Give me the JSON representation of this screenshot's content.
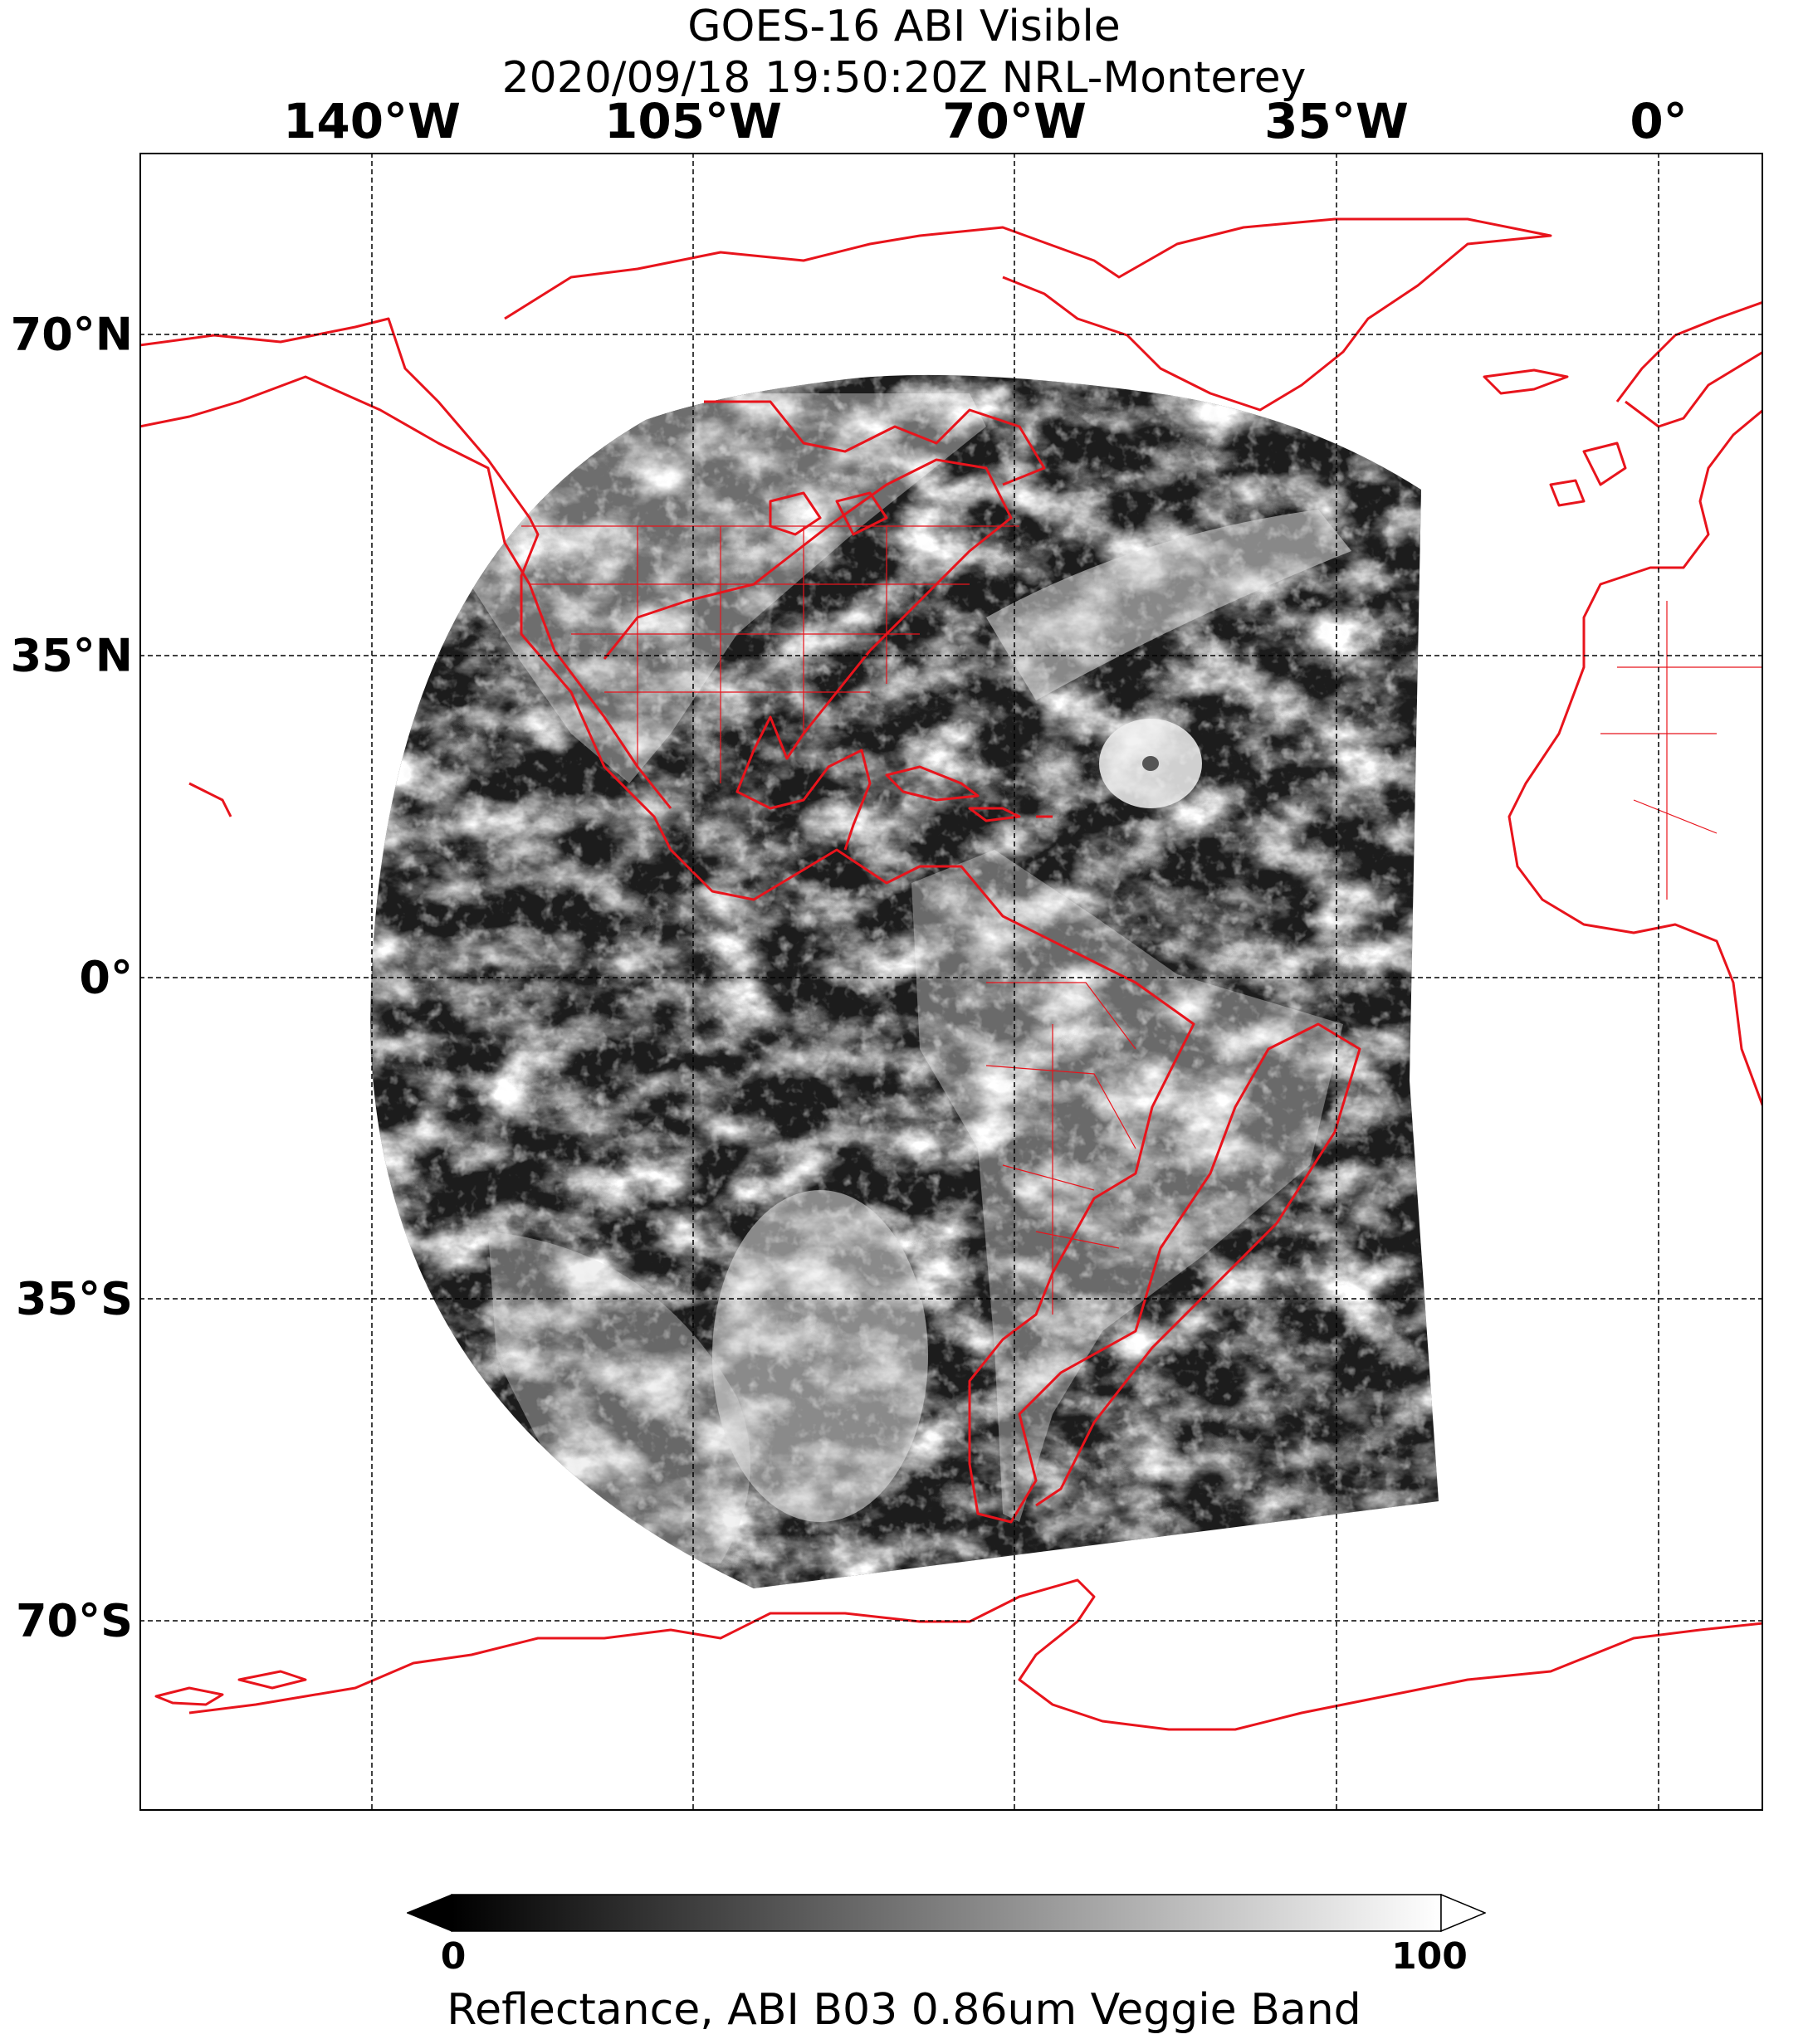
{
  "title": {
    "line1": "GOES-16 ABI Visible",
    "line2": "2020/09/18 19:50:20Z NRL-Monterey"
  },
  "map": {
    "projection": "equirectangular",
    "lon_range": [
      -168,
      -13
    ],
    "lat_range": [
      -89,
      91
    ],
    "lon_ticks": [
      {
        "value": -140,
        "label": "140°W"
      },
      {
        "value": -105,
        "label": "105°W"
      },
      {
        "value": -70,
        "label": "70°W"
      },
      {
        "value": -35,
        "label": "35°W"
      },
      {
        "value": 0,
        "label": "0°"
      }
    ],
    "lat_ticks": [
      {
        "value": 70,
        "label": "70°N"
      },
      {
        "value": 35,
        "label": "35°N"
      },
      {
        "value": 0,
        "label": "0°"
      },
      {
        "value": -35,
        "label": "35°S"
      },
      {
        "value": -70,
        "label": "70°S"
      }
    ],
    "gridlines": "dashed",
    "coastline_color": "#e8141c",
    "imagery": "grayscale visible reflectance, GOES-16 full disk"
  },
  "colorbar": {
    "min": 0,
    "max": 100,
    "min_label": "0",
    "max_label": "100",
    "colormap": "gray",
    "extend": "both",
    "label": "Reflectance, ABI B03 0.86um Veggie Band"
  }
}
